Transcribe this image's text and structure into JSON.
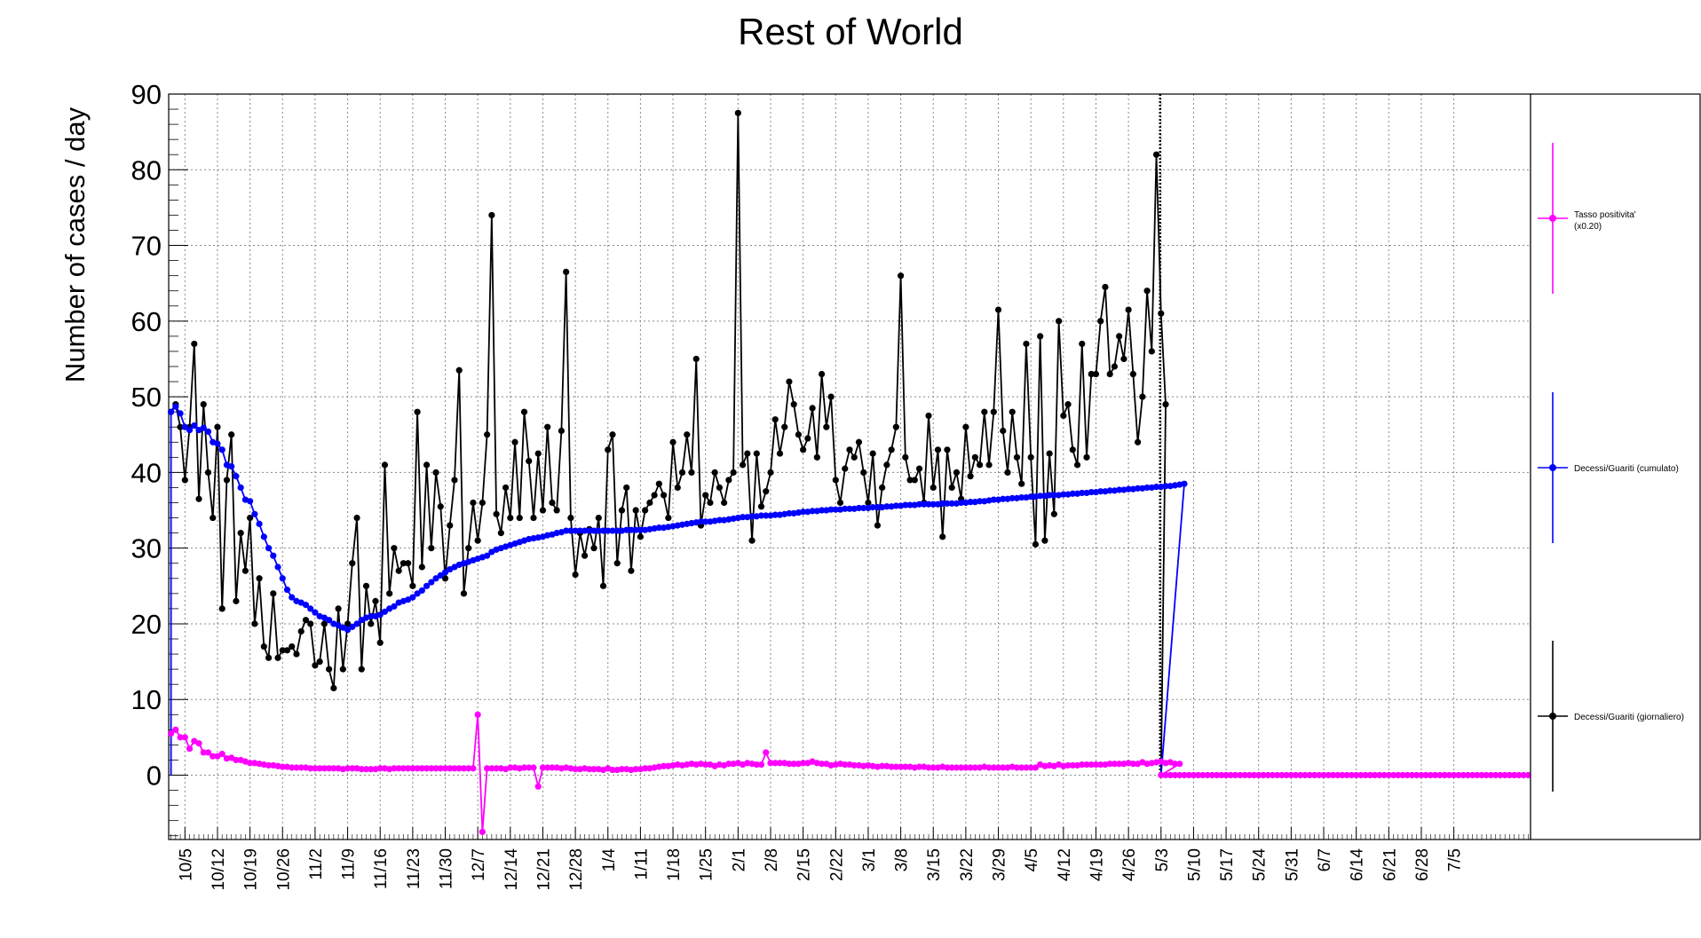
{
  "chart_data": {
    "type": "line",
    "title": "Rest of World",
    "ylabel": "Number of cases / day",
    "xlabel": "",
    "ylim": [
      -8.5,
      90
    ],
    "yticks": [
      0,
      10,
      20,
      30,
      40,
      50,
      60,
      70,
      80,
      90
    ],
    "grid": true,
    "legend_position": "right",
    "x_tick_labels": [
      "10/5",
      "10/12",
      "10/19",
      "10/26",
      "11/2",
      "11/9",
      "11/16",
      "11/23",
      "11/30",
      "12/7",
      "12/14",
      "12/21",
      "12/28",
      "1/4",
      "1/11",
      "1/18",
      "1/25",
      "2/1",
      "2/8",
      "2/15",
      "2/22",
      "3/1",
      "3/8",
      "3/15",
      "3/22",
      "3/29",
      "4/5",
      "4/12",
      "4/19",
      "4/26",
      "5/3",
      "5/10",
      "5/17",
      "5/24",
      "5/31",
      "6/7",
      "6/14",
      "6/21",
      "6/28",
      "7/5"
    ],
    "first_tick_day_index": 3,
    "day_count": 293,
    "cutoff_day_index": 213,
    "series": [
      {
        "name": "Decessi/Guariti (giornaliero)",
        "color": "#000000",
        "values": [
          48.0,
          49.0,
          46.0,
          39.0,
          46.0,
          57.0,
          36.5,
          49.0,
          40.0,
          34.0,
          46.0,
          22.0,
          39.0,
          45.0,
          23.0,
          32.0,
          27.0,
          34.0,
          20.0,
          26.0,
          17.0,
          15.5,
          24.0,
          15.5,
          16.5,
          16.5,
          17.0,
          16.0,
          19.0,
          20.5,
          20.0,
          14.5,
          15.0,
          20.0,
          14.0,
          11.5,
          22.0,
          14.0,
          20.0,
          28.0,
          34.0,
          14.0,
          25.0,
          20.0,
          23.0,
          17.5,
          41.0,
          24.0,
          30.0,
          27.0,
          28.0,
          28.0,
          25.0,
          48.0,
          27.5,
          41.0,
          30.0,
          40.0,
          35.5,
          26.0,
          33.0,
          39.0,
          53.5,
          24.0,
          30.0,
          36.0,
          31.0,
          36.0,
          45.0,
          74.0,
          34.5,
          32.0,
          38.0,
          34.0,
          44.0,
          34.0,
          48.0,
          41.5,
          34.0,
          42.5,
          35.0,
          46.0,
          36.0,
          35.0,
          45.5,
          66.5,
          34.0,
          26.5,
          32.0,
          29.0,
          32.5,
          30.0,
          34.0,
          25.0,
          43.0,
          45.0,
          28.0,
          35.0,
          38.0,
          27.0,
          35.0,
          31.5,
          35.0,
          36.0,
          37.0,
          38.5,
          37.0,
          34.0,
          44.0,
          38.0,
          40.0,
          45.0,
          40.0,
          55.0,
          33.0,
          37.0,
          36.0,
          40.0,
          38.0,
          36.0,
          39.0,
          40.0,
          87.5,
          41.0,
          42.5,
          31.0,
          42.5,
          35.5,
          37.5,
          40.0,
          47.0,
          42.5,
          46.0,
          52.0,
          49.0,
          45.0,
          43.0,
          44.5,
          48.5,
          42.0,
          53.0,
          46.0,
          50.0,
          39.0,
          36.0,
          40.5,
          43.0,
          42.0,
          44.0,
          40.0,
          36.0,
          42.5,
          33.0,
          38.0,
          41.0,
          43.0,
          46.0,
          66.0,
          42.0,
          39.0,
          39.0,
          40.5,
          36.0,
          47.5,
          38.0,
          43.0,
          31.5,
          43.0,
          38.0,
          40.0,
          36.5,
          46.0,
          39.5,
          42.0,
          41.0,
          48.0,
          41.0,
          48.0,
          61.5,
          45.5,
          40.0,
          48.0,
          42.0,
          38.5,
          57.0,
          42.0,
          30.5,
          58.0,
          31.0,
          42.5,
          34.5,
          60.0,
          47.5,
          49.0,
          43.0,
          41.0,
          57.0,
          42.0,
          53.0,
          53.0,
          60.0,
          64.5,
          53.0,
          54.0,
          58.0,
          55.0,
          61.5,
          53.0,
          44.0,
          50.0,
          64.0,
          56.0,
          82.0,
          61.0,
          49.0
        ]
      },
      {
        "name": "Decessi/Guariti (cumulato)",
        "color": "#0000ff",
        "values": [
          48.0,
          48.7,
          47.8,
          46.0,
          45.6,
          46.2,
          45.6,
          45.9,
          45.4,
          44.0,
          43.8,
          43.0,
          41.0,
          40.8,
          39.5,
          38.0,
          36.4,
          36.2,
          34.5,
          33.2,
          31.5,
          30.0,
          29.0,
          27.5,
          26.0,
          24.5,
          23.5,
          23.0,
          22.8,
          22.5,
          22.0,
          21.5,
          21.0,
          20.8,
          20.5,
          20.0,
          19.8,
          19.5,
          19.2,
          19.6,
          20.0,
          20.5,
          20.8,
          21.0,
          21.0,
          21.2,
          21.6,
          22.0,
          22.3,
          22.8,
          23.0,
          23.2,
          23.5,
          24.0,
          24.4,
          25.0,
          25.5,
          26.0,
          26.4,
          26.8,
          27.2,
          27.5,
          27.8,
          28.0,
          28.2,
          28.4,
          28.6,
          28.8,
          29.0,
          29.5,
          29.8,
          30.0,
          30.2,
          30.4,
          30.6,
          30.8,
          31.0,
          31.2,
          31.3,
          31.4,
          31.5,
          31.7,
          31.8,
          32.0,
          32.1,
          32.3,
          32.3,
          32.3,
          32.3,
          32.3,
          32.3,
          32.3,
          32.3,
          32.3,
          32.3,
          32.3,
          32.3,
          32.3,
          32.4,
          32.4,
          32.4,
          32.4,
          32.4,
          32.5,
          32.6,
          32.7,
          32.7,
          32.8,
          32.9,
          33.0,
          33.1,
          33.2,
          33.3,
          33.4,
          33.5,
          33.5,
          33.5,
          33.6,
          33.7,
          33.7,
          33.8,
          33.9,
          34.0,
          34.1,
          34.1,
          34.2,
          34.2,
          34.3,
          34.3,
          34.3,
          34.4,
          34.4,
          34.5,
          34.6,
          34.6,
          34.7,
          34.8,
          34.8,
          34.9,
          34.9,
          35.0,
          35.0,
          35.1,
          35.1,
          35.1,
          35.2,
          35.2,
          35.2,
          35.3,
          35.3,
          35.3,
          35.4,
          35.4,
          35.4,
          35.5,
          35.5,
          35.6,
          35.6,
          35.7,
          35.7,
          35.7,
          35.8,
          35.8,
          35.8,
          35.8,
          35.8,
          35.9,
          35.9,
          35.9,
          35.9,
          36.0,
          36.0,
          36.1,
          36.1,
          36.2,
          36.2,
          36.3,
          36.4,
          36.4,
          36.5,
          36.5,
          36.6,
          36.6,
          36.7,
          36.7,
          36.8,
          36.8,
          36.9,
          36.9,
          37.0,
          37.0,
          37.0,
          37.1,
          37.1,
          37.2,
          37.2,
          37.3,
          37.3,
          37.4,
          37.4,
          37.5,
          37.5,
          37.6,
          37.6,
          37.7,
          37.7,
          37.8,
          37.8,
          37.9,
          37.9,
          38.0,
          38.0,
          38.1,
          38.1,
          38.2,
          38.2,
          38.3,
          38.4,
          38.5
        ]
      },
      {
        "name": "Tasso positivita' (x0.20)",
        "color": "#ff00ff",
        "values": [
          5.5,
          6.0,
          5.0,
          5.0,
          3.5,
          4.5,
          4.2,
          3.0,
          3.0,
          2.5,
          2.5,
          2.8,
          2.2,
          2.3,
          2.0,
          2.0,
          1.8,
          1.6,
          1.6,
          1.5,
          1.4,
          1.3,
          1.3,
          1.2,
          1.1,
          1.1,
          1.0,
          1.0,
          1.0,
          1.0,
          0.9,
          0.9,
          0.9,
          0.9,
          0.9,
          0.9,
          0.9,
          0.8,
          0.9,
          0.9,
          0.9,
          0.8,
          0.8,
          0.8,
          0.8,
          0.9,
          0.9,
          0.8,
          0.9,
          0.9,
          0.9,
          0.9,
          0.9,
          0.9,
          0.9,
          0.9,
          0.9,
          0.9,
          0.9,
          0.9,
          0.9,
          0.9,
          0.9,
          0.9,
          0.9,
          0.9,
          8.0,
          -7.5,
          0.9,
          0.9,
          0.9,
          0.9,
          0.8,
          1.0,
          1.0,
          0.9,
          1.0,
          1.0,
          1.0,
          -1.5,
          1.0,
          1.0,
          1.0,
          1.0,
          0.9,
          1.0,
          0.9,
          0.8,
          0.8,
          0.9,
          0.8,
          0.8,
          0.8,
          0.7,
          0.9,
          0.7,
          0.7,
          0.8,
          0.8,
          0.7,
          0.8,
          0.8,
          0.9,
          0.9,
          1.0,
          1.1,
          1.2,
          1.2,
          1.3,
          1.4,
          1.3,
          1.4,
          1.5,
          1.4,
          1.5,
          1.4,
          1.4,
          1.2,
          1.4,
          1.3,
          1.5,
          1.5,
          1.6,
          1.4,
          1.6,
          1.5,
          1.4,
          1.4,
          3.0,
          1.6,
          1.6,
          1.6,
          1.6,
          1.5,
          1.5,
          1.5,
          1.6,
          1.6,
          1.8,
          1.6,
          1.5,
          1.5,
          1.3,
          1.4,
          1.5,
          1.4,
          1.4,
          1.3,
          1.3,
          1.2,
          1.3,
          1.2,
          1.1,
          1.2,
          1.2,
          1.1,
          1.1,
          1.1,
          1.1,
          1.1,
          1.0,
          1.1,
          1.1,
          1.0,
          1.0,
          1.0,
          1.1,
          1.0,
          1.0,
          1.0,
          1.0,
          1.0,
          1.0,
          1.0,
          1.0,
          1.1,
          1.0,
          1.0,
          1.0,
          1.0,
          1.0,
          1.1,
          1.0,
          1.0,
          1.0,
          1.0,
          1.0,
          1.4,
          1.2,
          1.3,
          1.2,
          1.4,
          1.2,
          1.3,
          1.3,
          1.3,
          1.4,
          1.4,
          1.4,
          1.4,
          1.4,
          1.4,
          1.5,
          1.5,
          1.5,
          1.5,
          1.6,
          1.5,
          1.5,
          1.7,
          1.5,
          1.6,
          1.7,
          1.8,
          1.6,
          1.7,
          1.5,
          1.5
        ]
      }
    ]
  },
  "legend": {
    "entries": [
      {
        "line1": "Tasso positivita'",
        "line2": "(x0.20)",
        "color": "#ff00ff"
      },
      {
        "line1": "Decessi/Guariti (cumulato)",
        "line2": "",
        "color": "#0000ff"
      },
      {
        "line1": "Decessi/Guariti (giornaliero)",
        "line2": "",
        "color": "#000000"
      }
    ]
  }
}
